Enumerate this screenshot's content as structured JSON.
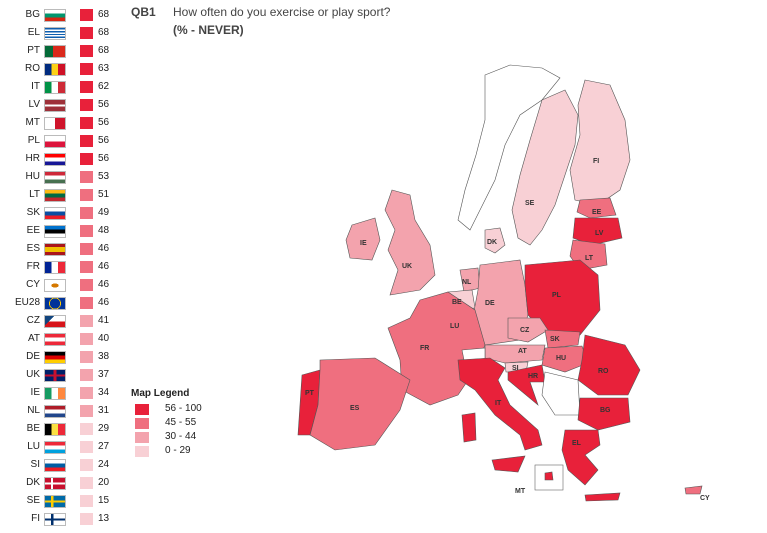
{
  "question": {
    "code": "QB1",
    "text": "How often do you exercise or play sport?",
    "subtitle": "(% - NEVER)"
  },
  "colors": {
    "band1": "#e8213a",
    "band2": "#ef6f7f",
    "band3": "#f3a3ad",
    "band4": "#f8d0d5"
  },
  "ranking": [
    {
      "code": "BG",
      "value": "68",
      "band": "band1"
    },
    {
      "code": "EL",
      "value": "68",
      "band": "band1"
    },
    {
      "code": "PT",
      "value": "68",
      "band": "band1"
    },
    {
      "code": "RO",
      "value": "63",
      "band": "band1"
    },
    {
      "code": "IT",
      "value": "62",
      "band": "band1"
    },
    {
      "code": "LV",
      "value": "56",
      "band": "band1"
    },
    {
      "code": "MT",
      "value": "56",
      "band": "band1"
    },
    {
      "code": "PL",
      "value": "56",
      "band": "band1"
    },
    {
      "code": "HR",
      "value": "56",
      "band": "band1"
    },
    {
      "code": "HU",
      "value": "53",
      "band": "band2"
    },
    {
      "code": "LT",
      "value": "51",
      "band": "band2"
    },
    {
      "code": "SK",
      "value": "49",
      "band": "band2"
    },
    {
      "code": "EE",
      "value": "48",
      "band": "band2"
    },
    {
      "code": "ES",
      "value": "46",
      "band": "band2"
    },
    {
      "code": "FR",
      "value": "46",
      "band": "band2"
    },
    {
      "code": "CY",
      "value": "46",
      "band": "band2"
    },
    {
      "code": "EU28",
      "value": "46",
      "band": "band2"
    },
    {
      "code": "CZ",
      "value": "41",
      "band": "band3"
    },
    {
      "code": "AT",
      "value": "40",
      "band": "band3"
    },
    {
      "code": "DE",
      "value": "38",
      "band": "band3"
    },
    {
      "code": "UK",
      "value": "37",
      "band": "band3"
    },
    {
      "code": "IE",
      "value": "34",
      "band": "band3"
    },
    {
      "code": "NL",
      "value": "31",
      "band": "band3"
    },
    {
      "code": "BE",
      "value": "29",
      "band": "band4"
    },
    {
      "code": "LU",
      "value": "27",
      "band": "band4"
    },
    {
      "code": "SI",
      "value": "24",
      "band": "band4"
    },
    {
      "code": "DK",
      "value": "20",
      "band": "band4"
    },
    {
      "code": "SE",
      "value": "15",
      "band": "band4"
    },
    {
      "code": "FI",
      "value": "13",
      "band": "band4"
    }
  ],
  "legend": {
    "title": "Map Legend",
    "items": [
      {
        "label": "56 - 100",
        "band": "band1"
      },
      {
        "label": "45 - 55",
        "band": "band2"
      },
      {
        "label": "30 - 44",
        "band": "band3"
      },
      {
        "label": "0 - 29",
        "band": "band4"
      }
    ]
  },
  "map_labels": [
    "FI",
    "SE",
    "EE",
    "LV",
    "LT",
    "IE",
    "UK",
    "DK",
    "NL",
    "BE",
    "DE",
    "PL",
    "LU",
    "CZ",
    "SK",
    "FR",
    "AT",
    "HU",
    "RO",
    "SI",
    "HR",
    "PT",
    "ES",
    "IT",
    "BG",
    "EL",
    "MT",
    "CY"
  ]
}
